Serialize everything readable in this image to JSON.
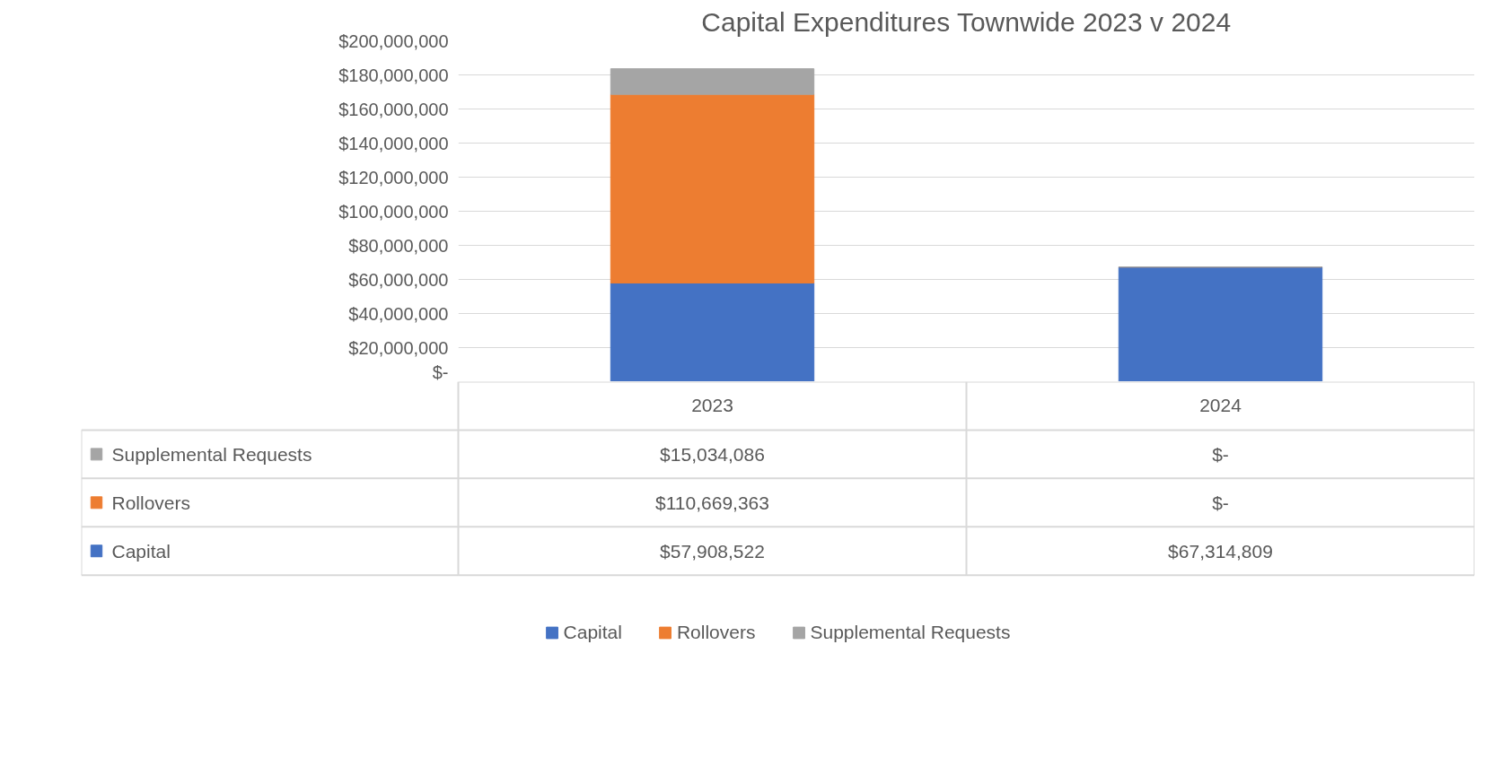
{
  "chart_data": {
    "type": "bar",
    "title": "Capital Expenditures Townwide 2023 v 2024",
    "stacked": true,
    "categories": [
      "2023",
      "2024"
    ],
    "series": [
      {
        "name": "Capital",
        "color": "#4472c4",
        "values": [
          57908522,
          67314809
        ],
        "value_labels": [
          "$57,908,522",
          "$67,314,809"
        ]
      },
      {
        "name": "Rollovers",
        "color": "#ed7d31",
        "values": [
          110669363,
          0
        ],
        "value_labels": [
          "$110,669,363",
          "$-"
        ]
      },
      {
        "name": "Supplemental Requests",
        "color": "#a5a5a5",
        "values": [
          15034086,
          0
        ],
        "value_labels": [
          "$15,034,086",
          "$-"
        ]
      }
    ],
    "ylim": [
      0,
      200000000
    ],
    "yticks": [
      {
        "value": 0,
        "label": "$-"
      },
      {
        "value": 20000000,
        "label": "$20,000,000"
      },
      {
        "value": 40000000,
        "label": "$40,000,000"
      },
      {
        "value": 60000000,
        "label": "$60,000,000"
      },
      {
        "value": 80000000,
        "label": "$80,000,000"
      },
      {
        "value": 100000000,
        "label": "$100,000,000"
      },
      {
        "value": 120000000,
        "label": "$120,000,000"
      },
      {
        "value": 140000000,
        "label": "$140,000,000"
      },
      {
        "value": 160000000,
        "label": "$160,000,000"
      },
      {
        "value": 180000000,
        "label": "$180,000,000"
      },
      {
        "value": 200000000,
        "label": "$200,000,000"
      }
    ],
    "grid": "y",
    "legend": "bottom"
  }
}
